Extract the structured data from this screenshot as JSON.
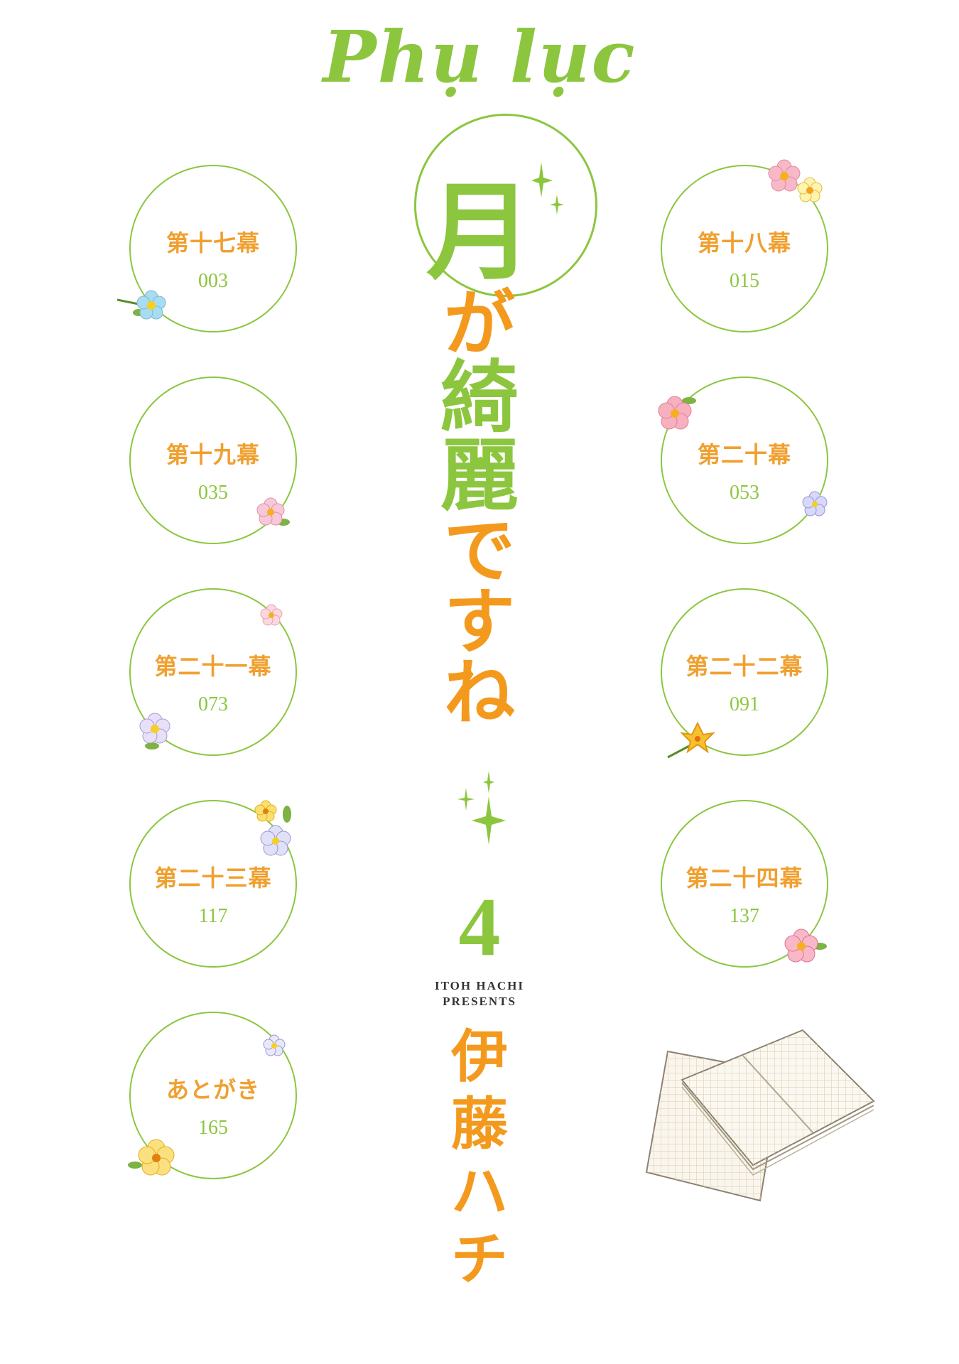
{
  "heading": "Phụ lục",
  "title": {
    "chars": [
      "月",
      "が",
      "綺",
      "麗",
      "で",
      "す",
      "ね"
    ]
  },
  "volume": "4",
  "presents": {
    "line1": "ITOH HACHI",
    "line2": "PRESENTS"
  },
  "author": {
    "chars": [
      "伊",
      "藤",
      "ハ",
      "チ"
    ]
  },
  "chapters": [
    {
      "title": "第十七幕",
      "page": "003"
    },
    {
      "title": "第十八幕",
      "page": "015"
    },
    {
      "title": "第十九幕",
      "page": "035"
    },
    {
      "title": "第二十幕",
      "page": "053"
    },
    {
      "title": "第二十一幕",
      "page": "073"
    },
    {
      "title": "第二十二幕",
      "page": "091"
    },
    {
      "title": "第二十三幕",
      "page": "117"
    },
    {
      "title": "第二十四幕",
      "page": "137"
    },
    {
      "title": "あとがき",
      "page": "165"
    }
  ],
  "colors": {
    "green": "#8cc63f",
    "orange": "#f39a1e",
    "chapter_title": "#f0a030"
  },
  "icons": [
    "flower-icon",
    "sparkle-icon",
    "manuscript-paper-icon"
  ]
}
